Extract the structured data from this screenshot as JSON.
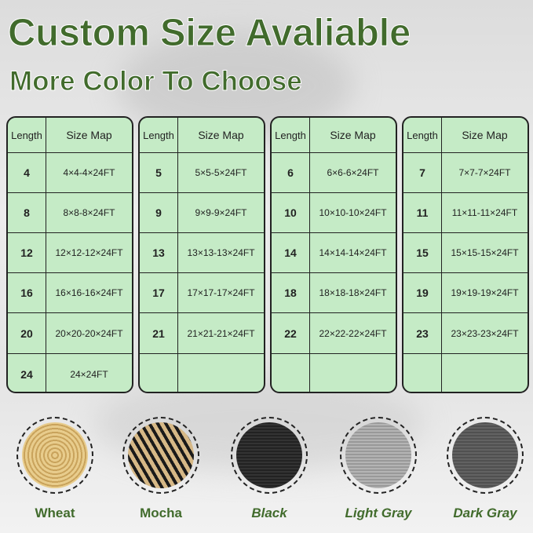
{
  "title": "Custom Size Avaliable",
  "subtitle": "More Color To Choose",
  "header": {
    "length": "Length",
    "size_map": "Size Map"
  },
  "tables": [
    {
      "rows": [
        {
          "length": "4",
          "size": "4×4-4×24FT"
        },
        {
          "length": "8",
          "size": "8×8-8×24FT"
        },
        {
          "length": "12",
          "size": "12×12-12×24FT"
        },
        {
          "length": "16",
          "size": "16×16-16×24FT"
        },
        {
          "length": "20",
          "size": "20×20-20×24FT"
        },
        {
          "length": "24",
          "size": "24×24FT"
        }
      ]
    },
    {
      "rows": [
        {
          "length": "5",
          "size": "5×5-5×24FT"
        },
        {
          "length": "9",
          "size": "9×9-9×24FT"
        },
        {
          "length": "13",
          "size": "13×13-13×24FT"
        },
        {
          "length": "17",
          "size": "17×17-17×24FT"
        },
        {
          "length": "21",
          "size": "21×21-21×24FT"
        },
        {
          "length": "",
          "size": ""
        }
      ]
    },
    {
      "rows": [
        {
          "length": "6",
          "size": "6×6-6×24FT"
        },
        {
          "length": "10",
          "size": "10×10-10×24FT"
        },
        {
          "length": "14",
          "size": "14×14-14×24FT"
        },
        {
          "length": "18",
          "size": "18×18-18×24FT"
        },
        {
          "length": "22",
          "size": "22×22-22×24FT"
        },
        {
          "length": "",
          "size": ""
        }
      ]
    },
    {
      "rows": [
        {
          "length": "7",
          "size": "7×7-7×24FT"
        },
        {
          "length": "11",
          "size": "11×11-11×24FT"
        },
        {
          "length": "15",
          "size": "15×15-15×24FT"
        },
        {
          "length": "19",
          "size": "19×19-19×24FT"
        },
        {
          "length": "23",
          "size": "23×23-23×24FT"
        },
        {
          "length": "",
          "size": ""
        }
      ]
    }
  ],
  "colors": [
    {
      "name": "Wheat",
      "swatch": "#e0c07e"
    },
    {
      "name": "Mocha",
      "swatch": "#8a7350"
    },
    {
      "name": "Black",
      "swatch": "#2c2c2c"
    },
    {
      "name": "Light Gray",
      "swatch": "#a8a8a8"
    },
    {
      "name": "Dark Gray",
      "swatch": "#5a5a5a"
    }
  ]
}
